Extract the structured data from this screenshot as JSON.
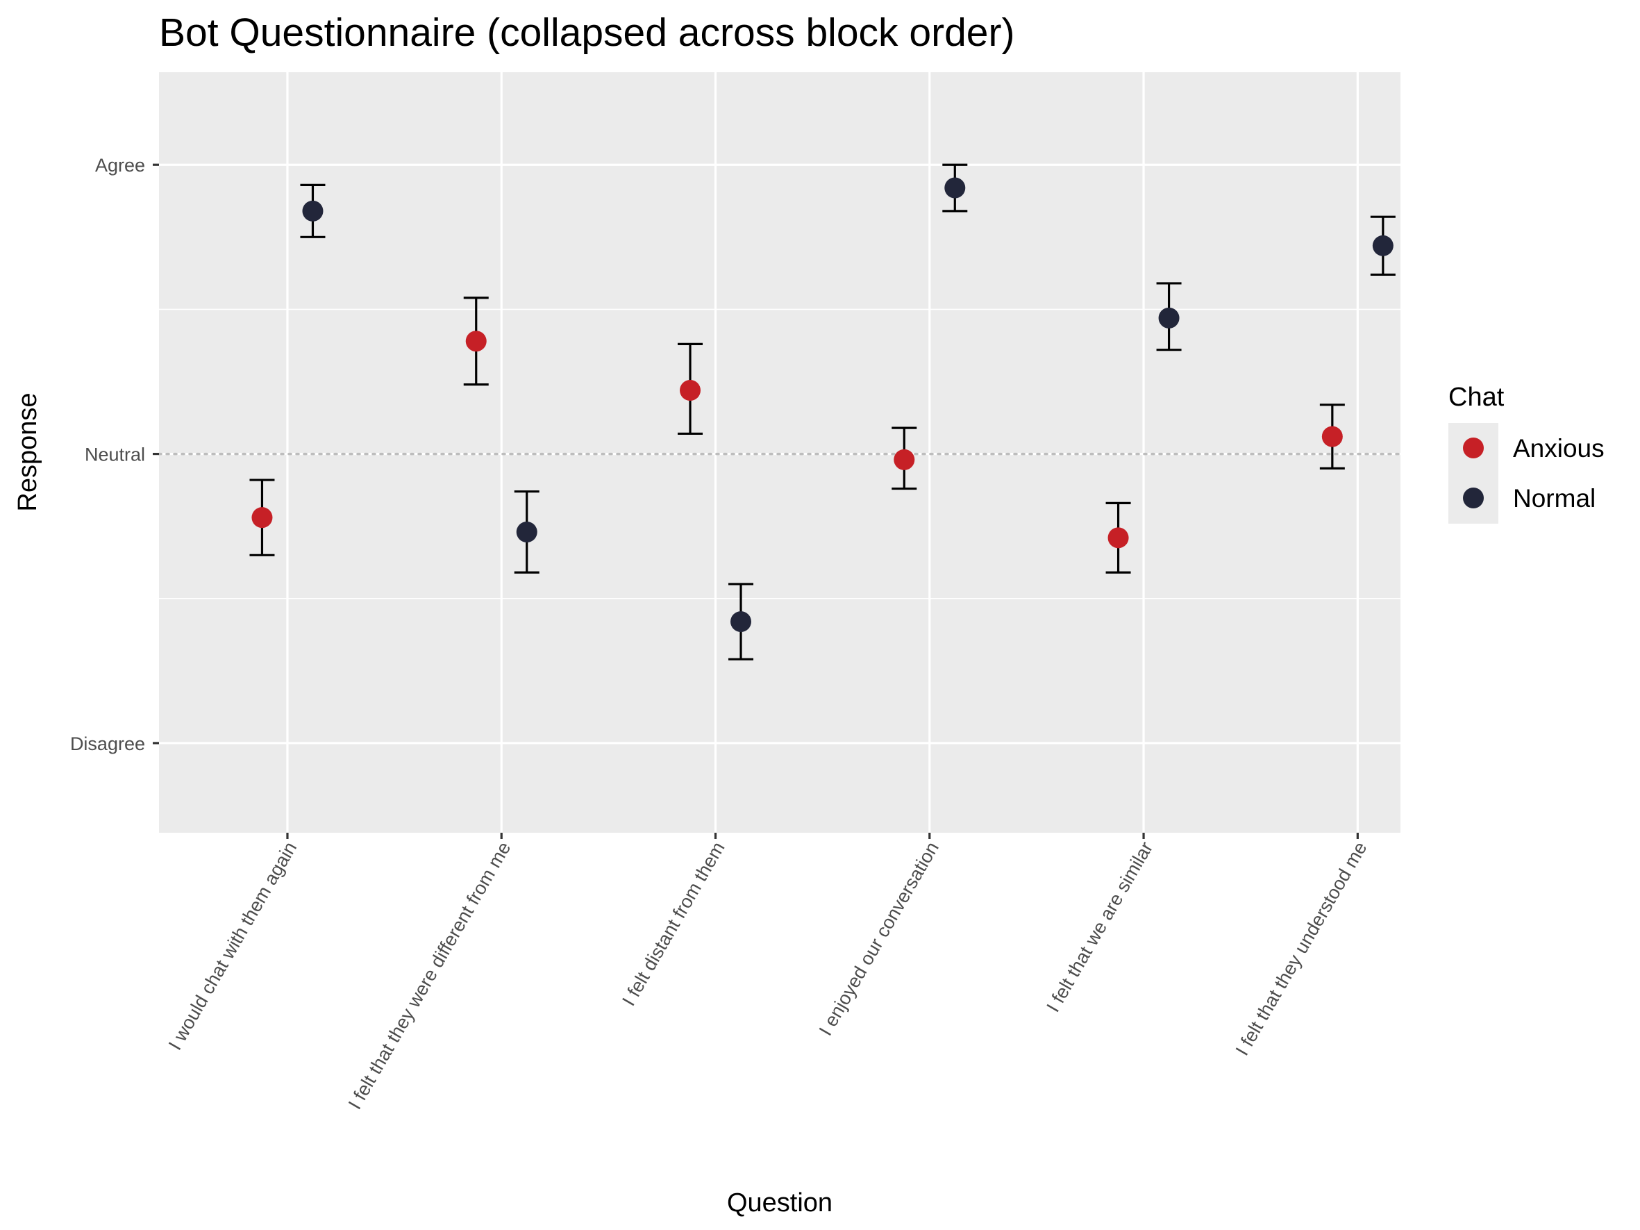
{
  "chart_data": {
    "type": "scatter",
    "title": "Bot Questionnaire (collapsed across block order)",
    "xlabel": "Question",
    "ylabel": "Response",
    "categories": [
      "I would chat with them again",
      "I felt that they were different from me",
      "I felt distant from them",
      "I enjoyed our conversation",
      "I felt that we are similar",
      "I felt that they understood me"
    ],
    "y_scale": {
      "min": 1,
      "max": 3,
      "ticks": [
        {
          "value": 1,
          "label": "Disagree"
        },
        {
          "value": 2,
          "label": "Neutral"
        },
        {
          "value": 3,
          "label": "Agree"
        }
      ]
    },
    "ylim": [
      0.69,
      3.32
    ],
    "reference_line": {
      "value": 2,
      "style": "dotted"
    },
    "grid": true,
    "legend": {
      "title": "Chat",
      "position": "right"
    },
    "series": [
      {
        "name": "Anxious",
        "color": "#C62026",
        "values": [
          1.78,
          2.39,
          2.22,
          1.98,
          1.71,
          2.06
        ],
        "error_low": [
          1.65,
          2.24,
          2.07,
          1.88,
          1.59,
          1.95
        ],
        "error_high": [
          1.91,
          2.54,
          2.38,
          2.09,
          1.83,
          2.17
        ]
      },
      {
        "name": "Normal",
        "color": "#22263A",
        "values": [
          2.84,
          1.73,
          1.42,
          2.92,
          2.47,
          2.72
        ],
        "error_low": [
          2.75,
          1.59,
          1.29,
          2.84,
          2.36,
          2.62
        ],
        "error_high": [
          2.93,
          1.87,
          1.55,
          3.0,
          2.59,
          2.82
        ]
      }
    ]
  }
}
